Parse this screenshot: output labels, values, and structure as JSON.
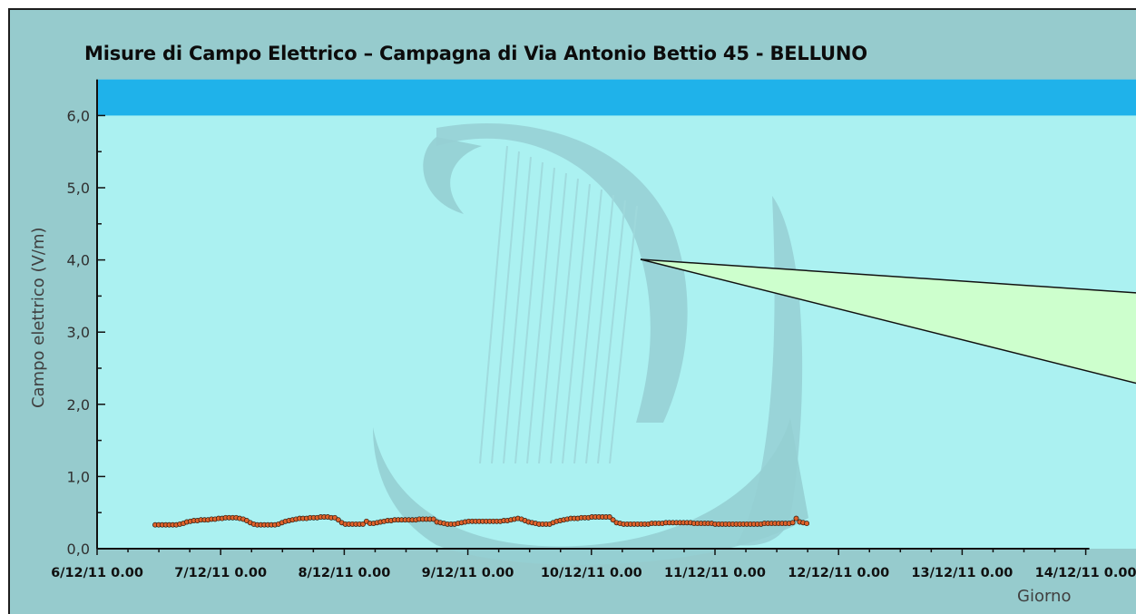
{
  "title": "Misure di Campo Elettrico – Campagna di Via Antonio Bettio 45 - BELLUNO",
  "colors": {
    "frame": "#96cbcd",
    "plot_area": "#abf1f1",
    "limit_band": "#1fb2ea",
    "series_marker": "#e0622a",
    "series_line": "#1a1a1a",
    "callout": "#cdffcd",
    "watermark": "#95cfd3"
  },
  "watermark_icon": "harp-logo-icon",
  "chart_data": {
    "type": "line",
    "title": "Misure di Campo Elettrico – Campagna di Via Antonio Bettio 45 - BELLUNO",
    "xlabel": "Giorno",
    "ylabel": "Campo elettrico (V/m)",
    "ylim": [
      0,
      6.5
    ],
    "xlim": [
      0,
      8
    ],
    "yticks": [
      0,
      1,
      2,
      3,
      4,
      5,
      6
    ],
    "ytick_labels": [
      "0,0",
      "1,0",
      "2,0",
      "3,0",
      "4,0",
      "5,0",
      "6,0"
    ],
    "xtick_labels": [
      "6/12/11 0.00",
      "7/12/11 0.00",
      "8/12/11 0.00",
      "9/12/11 0.00",
      "10/12/11 0.00",
      "11/12/11 0.00",
      "12/12/11 0.00",
      "13/12/11 0.00",
      "14/12/11 0.00"
    ],
    "limit_band": [
      6.0,
      6.5
    ],
    "grid": false,
    "series": [
      {
        "x_start": 0.47,
        "x_step": 0.0285,
        "values": [
          0.33,
          0.33,
          0.33,
          0.33,
          0.33,
          0.33,
          0.33,
          0.34,
          0.35,
          0.37,
          0.38,
          0.39,
          0.39,
          0.4,
          0.4,
          0.4,
          0.41,
          0.41,
          0.42,
          0.42,
          0.43,
          0.43,
          0.43,
          0.43,
          0.42,
          0.41,
          0.39,
          0.36,
          0.34,
          0.33,
          0.33,
          0.33,
          0.33,
          0.33,
          0.33,
          0.34,
          0.36,
          0.38,
          0.39,
          0.4,
          0.41,
          0.42,
          0.42,
          0.42,
          0.43,
          0.43,
          0.43,
          0.44,
          0.44,
          0.44,
          0.43,
          0.43,
          0.4,
          0.36,
          0.34,
          0.34,
          0.34,
          0.34,
          0.34,
          0.34,
          0.38,
          0.35,
          0.35,
          0.36,
          0.37,
          0.38,
          0.39,
          0.39,
          0.4,
          0.4,
          0.4,
          0.4,
          0.4,
          0.4,
          0.4,
          0.41,
          0.41,
          0.41,
          0.41,
          0.41,
          0.37,
          0.36,
          0.35,
          0.34,
          0.34,
          0.34,
          0.35,
          0.36,
          0.37,
          0.38,
          0.38,
          0.38,
          0.38,
          0.38,
          0.38,
          0.38,
          0.38,
          0.38,
          0.38,
          0.39,
          0.39,
          0.4,
          0.41,
          0.42,
          0.41,
          0.39,
          0.37,
          0.36,
          0.35,
          0.34,
          0.34,
          0.34,
          0.34,
          0.36,
          0.38,
          0.39,
          0.4,
          0.41,
          0.42,
          0.42,
          0.42,
          0.43,
          0.43,
          0.43,
          0.44,
          0.44,
          0.44,
          0.44,
          0.44,
          0.44,
          0.4,
          0.36,
          0.35,
          0.34,
          0.34,
          0.34,
          0.34,
          0.34,
          0.34,
          0.34,
          0.34,
          0.35,
          0.35,
          0.35,
          0.35,
          0.36,
          0.36,
          0.36,
          0.36,
          0.36,
          0.36,
          0.36,
          0.36,
          0.35,
          0.35,
          0.35,
          0.35,
          0.35,
          0.35,
          0.34,
          0.34,
          0.34,
          0.34,
          0.34,
          0.34,
          0.34,
          0.34,
          0.34,
          0.34,
          0.34,
          0.34,
          0.34,
          0.34,
          0.35,
          0.35,
          0.35,
          0.35,
          0.35,
          0.35,
          0.35,
          0.35,
          0.36,
          0.42,
          0.37,
          0.36,
          0.35
        ]
      }
    ]
  }
}
